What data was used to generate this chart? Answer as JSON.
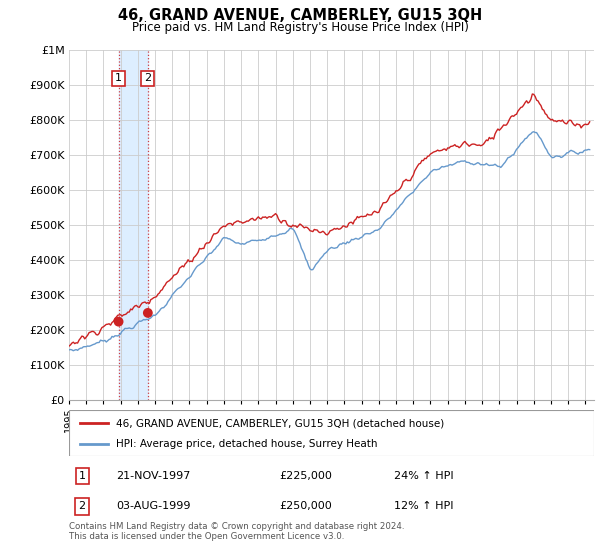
{
  "title": "46, GRAND AVENUE, CAMBERLEY, GU15 3QH",
  "subtitle": "Price paid vs. HM Land Registry's House Price Index (HPI)",
  "ylim": [
    0,
    1000000
  ],
  "yticks": [
    0,
    100000,
    200000,
    300000,
    400000,
    500000,
    600000,
    700000,
    800000,
    900000,
    1000000
  ],
  "ytick_labels": [
    "£0",
    "£100K",
    "£200K",
    "£300K",
    "£400K",
    "£500K",
    "£600K",
    "£700K",
    "£800K",
    "£900K",
    "£1M"
  ],
  "xlim_start": 1995,
  "xlim_end": 2025.5,
  "legend_line1": "46, GRAND AVENUE, CAMBERLEY, GU15 3QH (detached house)",
  "legend_line2": "HPI: Average price, detached house, Surrey Heath",
  "sale1_date": "21-NOV-1997",
  "sale1_price": "£225,000",
  "sale1_hpi": "24% ↑ HPI",
  "sale1_x": 1997.88,
  "sale1_y": 225000,
  "sale2_date": "03-AUG-1999",
  "sale2_price": "£250,000",
  "sale2_hpi": "12% ↑ HPI",
  "sale2_x": 1999.58,
  "sale2_y": 250000,
  "footer": "Contains HM Land Registry data © Crown copyright and database right 2024.\nThis data is licensed under the Open Government Licence v3.0.",
  "line_color_red": "#cc2222",
  "line_color_blue": "#6699cc",
  "shade_color": "#ddeeff",
  "dashed_color": "#cc2222",
  "grid_color": "#cccccc",
  "label_box_color": "#cc2222",
  "label_bg_color": "#ffffff"
}
